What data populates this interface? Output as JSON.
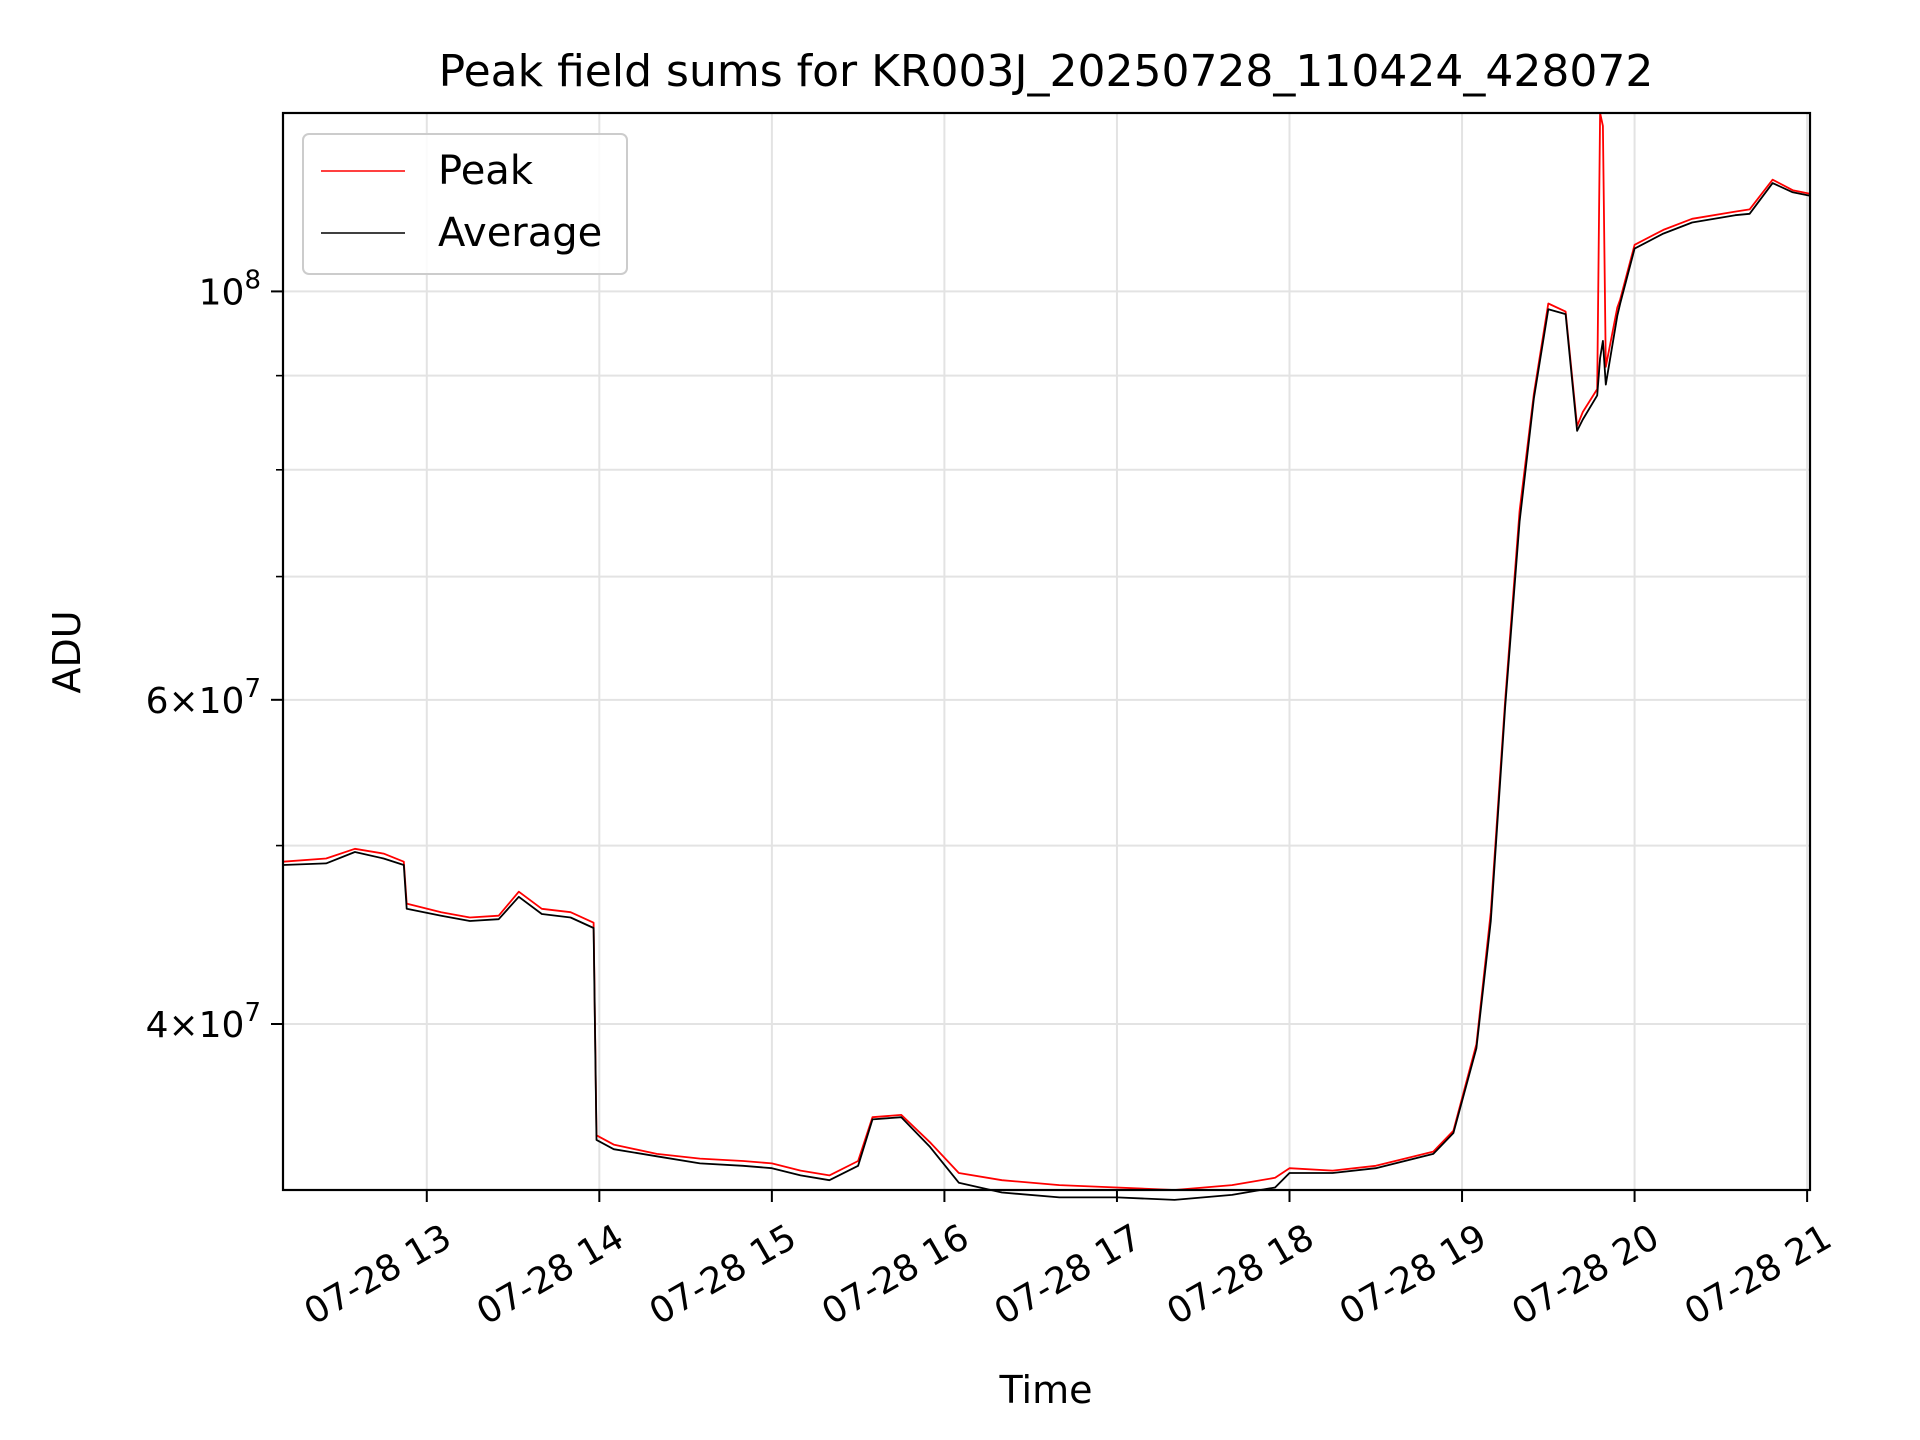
{
  "chart_data": {
    "type": "line",
    "title": "Peak field sums for KR003J_20250728_110424_428072",
    "xlabel": "Time",
    "ylabel": "ADU",
    "yscale": "log",
    "grid": true,
    "legend_position": "upper-left",
    "xlim": [
      "07-28 12:10",
      "07-28 21:01"
    ],
    "ylim": [
      32500000,
      125000000
    ],
    "x_ticks": [
      "07-28 13",
      "07-28 14",
      "07-28 15",
      "07-28 16",
      "07-28 17",
      "07-28 18",
      "07-28 19",
      "07-28 20",
      "07-28 21"
    ],
    "y_ticks": [
      {
        "value": 40000000,
        "label_mantissa": "4",
        "label_exp": "7"
      },
      {
        "value": 60000000,
        "label_mantissa": "6",
        "label_exp": "7"
      },
      {
        "value": 100000000,
        "label_mantissa": "",
        "label_exp": "8"
      }
    ],
    "y_minor_ticks": [
      50000000,
      70000000,
      80000000,
      90000000
    ],
    "series": [
      {
        "name": "Peak",
        "color": "#ff0000",
        "x": [
          "07-28 12:10",
          "07-28 12:25",
          "07-28 12:35",
          "07-28 12:45",
          "07-28 12:52",
          "07-28 12:53",
          "07-28 13:05",
          "07-28 13:15",
          "07-28 13:25",
          "07-28 13:32",
          "07-28 13:40",
          "07-28 13:50",
          "07-28 13:58",
          "07-28 13:59",
          "07-28 14:05",
          "07-28 14:20",
          "07-28 14:35",
          "07-28 14:50",
          "07-28 15:00",
          "07-28 15:10",
          "07-28 15:20",
          "07-28 15:30",
          "07-28 15:35",
          "07-28 15:45",
          "07-28 15:55",
          "07-28 16:05",
          "07-28 16:20",
          "07-28 16:40",
          "07-28 17:00",
          "07-28 17:20",
          "07-28 17:40",
          "07-28 17:55",
          "07-28 18:00",
          "07-28 18:15",
          "07-28 18:30",
          "07-28 18:50",
          "07-28 18:57",
          "07-28 19:05",
          "07-28 19:10",
          "07-28 19:15",
          "07-28 19:20",
          "07-28 19:25",
          "07-28 19:30",
          "07-28 19:36",
          "07-28 19:40",
          "07-28 19:42",
          "07-28 19:47",
          "07-28 19:48",
          "07-28 19:49",
          "07-28 19:50",
          "07-28 19:54",
          "07-28 19:55",
          "07-28 20:00",
          "07-28 20:10",
          "07-28 20:20",
          "07-28 20:35",
          "07-28 20:40",
          "07-28 20:48",
          "07-28 20:55",
          "07-28 21:01"
        ],
        "values": [
          49000000,
          49200000,
          49800000,
          49500000,
          49000000,
          46500000,
          46000000,
          45700000,
          45800000,
          47200000,
          46200000,
          46000000,
          45400000,
          34800000,
          34400000,
          34000000,
          33800000,
          33700000,
          33600000,
          33300000,
          33100000,
          33700000,
          35600000,
          35700000,
          34500000,
          33200000,
          32900000,
          32700000,
          32600000,
          32500000,
          32700000,
          33000000,
          33400000,
          33300000,
          33500000,
          34100000,
          35000000,
          39000000,
          46000000,
          60000000,
          76000000,
          88000000,
          98500000,
          97500000,
          84500000,
          86000000,
          88500000,
          125000000,
          123000000,
          91000000,
          98000000,
          99000000,
          106000000,
          108000000,
          109500000,
          110500000,
          110800000,
          115000000,
          113500000,
          113000000
        ]
      },
      {
        "name": "Average",
        "color": "#000000",
        "x": [
          "07-28 12:10",
          "07-28 12:25",
          "07-28 12:35",
          "07-28 12:45",
          "07-28 12:52",
          "07-28 12:53",
          "07-28 13:05",
          "07-28 13:15",
          "07-28 13:25",
          "07-28 13:32",
          "07-28 13:40",
          "07-28 13:50",
          "07-28 13:58",
          "07-28 13:59",
          "07-28 14:05",
          "07-28 14:20",
          "07-28 14:35",
          "07-28 14:50",
          "07-28 15:00",
          "07-28 15:10",
          "07-28 15:20",
          "07-28 15:30",
          "07-28 15:35",
          "07-28 15:45",
          "07-28 15:55",
          "07-28 16:05",
          "07-28 16:20",
          "07-28 16:40",
          "07-28 17:00",
          "07-28 17:20",
          "07-28 17:40",
          "07-28 17:55",
          "07-28 18:00",
          "07-28 18:15",
          "07-28 18:30",
          "07-28 18:50",
          "07-28 18:57",
          "07-28 19:05",
          "07-28 19:10",
          "07-28 19:15",
          "07-28 19:20",
          "07-28 19:25",
          "07-28 19:30",
          "07-28 19:36",
          "07-28 19:40",
          "07-28 19:42",
          "07-28 19:47",
          "07-28 19:48",
          "07-28 19:49",
          "07-28 19:50",
          "07-28 19:54",
          "07-28 19:55",
          "07-28 20:00",
          "07-28 20:10",
          "07-28 20:20",
          "07-28 20:35",
          "07-28 20:40",
          "07-28 20:48",
          "07-28 20:55",
          "07-28 21:01"
        ],
        "values": [
          48800000,
          48900000,
          49600000,
          49200000,
          48800000,
          46200000,
          45800000,
          45500000,
          45600000,
          46900000,
          45900000,
          45700000,
          45100000,
          34600000,
          34200000,
          33900000,
          33600000,
          33500000,
          33400000,
          33100000,
          32900000,
          33500000,
          35500000,
          35600000,
          34300000,
          32800000,
          32400000,
          32200000,
          32200000,
          32100000,
          32300000,
          32600000,
          33200000,
          33200000,
          33400000,
          34000000,
          34900000,
          38800000,
          45500000,
          59500000,
          75000000,
          87500000,
          97800000,
          97200000,
          84000000,
          85200000,
          87800000,
          92000000,
          94000000,
          89000000,
          97000000,
          98500000,
          105500000,
          107500000,
          109000000,
          110000000,
          110200000,
          114500000,
          113200000,
          112700000
        ]
      }
    ]
  }
}
